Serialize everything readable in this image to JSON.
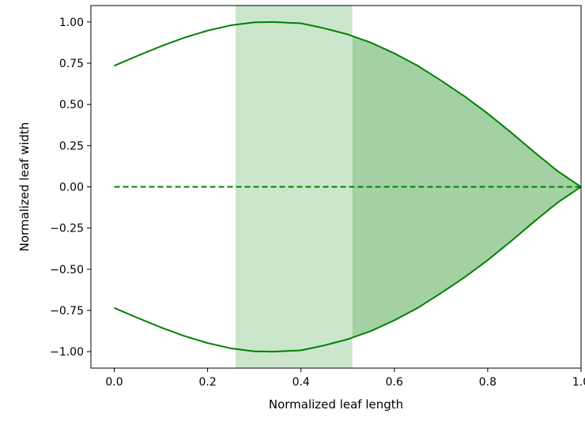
{
  "chart_data": {
    "type": "area",
    "title": "",
    "xlabel": "Normalized leaf length",
    "ylabel": "Normalized leaf width",
    "xlim": [
      -0.05,
      1.0
    ],
    "ylim": [
      -1.1,
      1.1
    ],
    "grid": false,
    "xticks": [
      0.0,
      0.2,
      0.4,
      0.6,
      0.8,
      1.0
    ],
    "xtick_labels": [
      "0.0",
      "0.2",
      "0.4",
      "0.6",
      "0.8",
      "1.0"
    ],
    "yticks": [
      1.0,
      0.75,
      0.5,
      0.25,
      0.0,
      -0.25,
      -0.5,
      -0.75,
      -1.0
    ],
    "ytick_labels": [
      "1.00",
      "0.75",
      "0.50",
      "0.25",
      "0.00",
      "−0.25",
      "−0.50",
      "−0.75",
      "−1.00"
    ],
    "outline": {
      "x": [
        0.0,
        0.05,
        0.1,
        0.15,
        0.2,
        0.25,
        0.3,
        0.34,
        0.4,
        0.45,
        0.5,
        0.55,
        0.6,
        0.65,
        0.7,
        0.75,
        0.8,
        0.85,
        0.9,
        0.95,
        1.0
      ],
      "y": [
        0.735,
        0.795,
        0.853,
        0.905,
        0.948,
        0.98,
        0.998,
        1.0,
        0.992,
        0.962,
        0.925,
        0.875,
        0.81,
        0.735,
        0.645,
        0.55,
        0.445,
        0.33,
        0.21,
        0.095,
        0.0
      ],
      "color": "#008000"
    },
    "midline": {
      "x": [
        0.0,
        1.0
      ],
      "y": [
        0.0,
        0.0
      ],
      "color": "#008000",
      "style": "dashed"
    },
    "shaded_regions": [
      {
        "x_start": 0.26,
        "x_end": 0.51,
        "type": "vertical-band",
        "color": "#008000",
        "opacity": 0.2
      },
      {
        "x_start": 0.51,
        "x_end": 1.0,
        "type": "fill-between-outline",
        "color": "#008000",
        "opacity": 0.36
      }
    ]
  }
}
